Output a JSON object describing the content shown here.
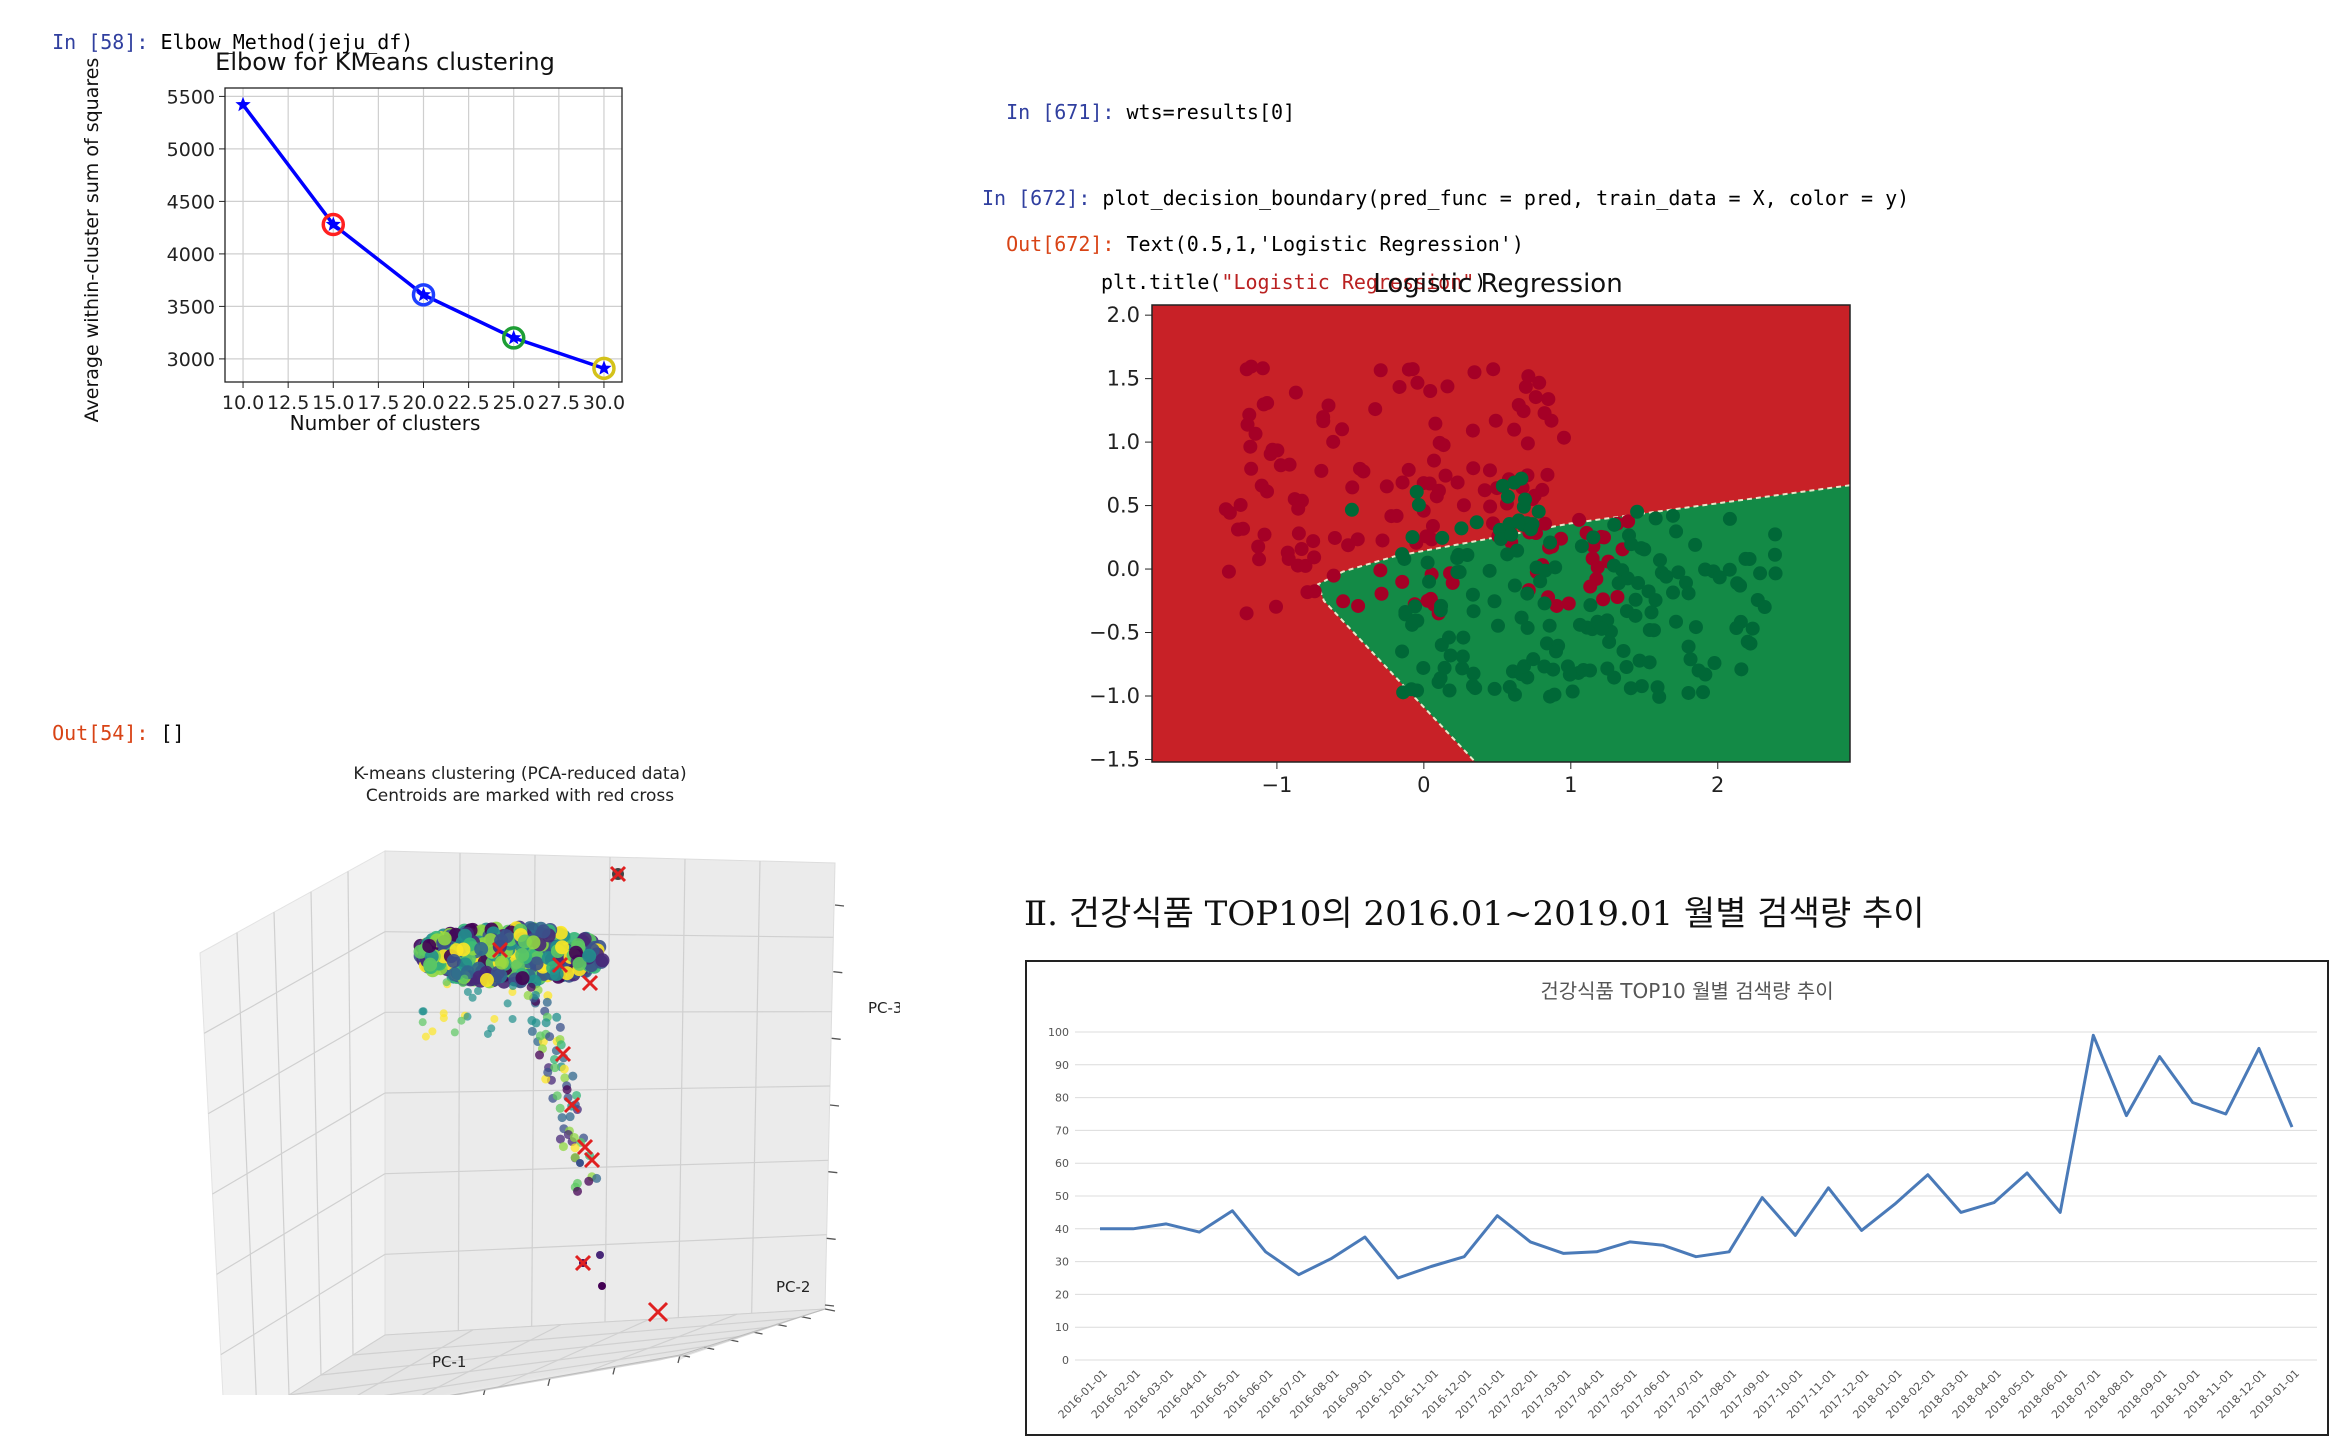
{
  "cells": {
    "c58_in_prompt": "In [58]:",
    "c58_code": "Elbow_Method(jeju_df)",
    "c54_out_prompt": "Out[54]:",
    "c54_out_text": "[]",
    "c671_prompt": "In [671]:",
    "c671_code": "wts=results[0]",
    "c672_prompt": "In [672]:",
    "c672_line1": "plot_decision_boundary(pred_func = pred, train_data = X, color = y)",
    "c672_line2_pre": "plt.title(",
    "c672_line2_str": "\"Logistic Regression\"",
    "c672_line2_post": ")",
    "c672_out_prompt": "Out[672]:",
    "c672_out_text": "Text(0.5,1,'Logistic Regression')"
  },
  "heading": "Ⅱ. 건강식품 TOP10의 2016.01~2019.01 월별 검색량 추이",
  "colors": {
    "elbow_line": "#0000ff",
    "red_region": "#c82127",
    "green_region": "#138a46",
    "red_dot": "#a50026",
    "green_dot": "#006837",
    "trend_line": "#4a7ab8"
  },
  "chart_data": [
    {
      "type": "line",
      "title": "Elbow for KMeans clustering",
      "xlabel": "Number of clusters",
      "ylabel": "Average within-cluster sum of squares",
      "x": [
        10,
        15,
        20,
        25,
        30
      ],
      "y": [
        5420,
        4280,
        3610,
        3200,
        2910
      ],
      "xlim": [
        9.0,
        31.0
      ],
      "ylim": [
        2780,
        5580
      ],
      "xticks": [
        "10.0",
        "12.5",
        "15.0",
        "17.5",
        "20.0",
        "22.5",
        "25.0",
        "27.5",
        "30.0"
      ],
      "yticks": [
        "3000",
        "3500",
        "4000",
        "4500",
        "5000",
        "5500"
      ],
      "grid": true,
      "highlight_circles": [
        {
          "x": 15,
          "y": 4280,
          "color": "#ff2020"
        },
        {
          "x": 20,
          "y": 3610,
          "color": "#1e3fff"
        },
        {
          "x": 25,
          "y": 3200,
          "color": "#1e9e35"
        },
        {
          "x": 30,
          "y": 2910,
          "color": "#d4c21a"
        }
      ]
    },
    {
      "type": "scatter",
      "title": "Logistic Regression",
      "xlim": [
        -1.85,
        2.9
      ],
      "ylim": [
        -1.52,
        2.08
      ],
      "xticks": [
        "−1",
        "0",
        "1",
        "2"
      ],
      "yticks": [
        "2.0",
        "1.5",
        "1.0",
        "0.5",
        "0.0",
        "−0.5",
        "−1.0",
        "−1.5"
      ],
      "grid": false
    },
    {
      "type": "scatter",
      "title": "K-means clustering (PCA-reduced data)",
      "subtitle": "Centroids are marked with red cross",
      "axis_labels": [
        "PC-1",
        "PC-2",
        "PC-3"
      ]
    },
    {
      "type": "line",
      "title": "건강식품 TOP10 월별 검색량 추이",
      "ylim": [
        0,
        100
      ],
      "yticks": [
        "0",
        "10",
        "20",
        "30",
        "40",
        "50",
        "60",
        "70",
        "80",
        "90",
        "100"
      ],
      "grid": true,
      "categories": [
        "2016-01-01",
        "2016-02-01",
        "2016-03-01",
        "2016-04-01",
        "2016-05-01",
        "2016-06-01",
        "2016-07-01",
        "2016-08-01",
        "2016-09-01",
        "2016-10-01",
        "2016-11-01",
        "2016-12-01",
        "2017-01-01",
        "2017-02-01",
        "2017-03-01",
        "2017-04-01",
        "2017-05-01",
        "2017-06-01",
        "2017-07-01",
        "2017-08-01",
        "2017-09-01",
        "2017-10-01",
        "2017-11-01",
        "2017-12-01",
        "2018-01-01",
        "2018-02-01",
        "2018-03-01",
        "2018-04-01",
        "2018-05-01",
        "2018-06-01",
        "2018-07-01",
        "2018-08-01",
        "2018-09-01",
        "2018-10-01",
        "2018-11-01",
        "2018-12-01",
        "2019-01-01"
      ],
      "values": [
        40,
        40,
        41.5,
        39,
        45.5,
        33,
        26,
        31,
        37.5,
        25,
        28.5,
        31.5,
        44,
        36,
        32.5,
        33,
        36,
        35,
        31.5,
        33,
        49.5,
        38,
        52.5,
        39.5,
        47.5,
        56.5,
        45,
        48,
        57,
        45,
        99,
        74.5,
        92.5,
        78.5,
        75,
        95,
        71
      ]
    }
  ]
}
